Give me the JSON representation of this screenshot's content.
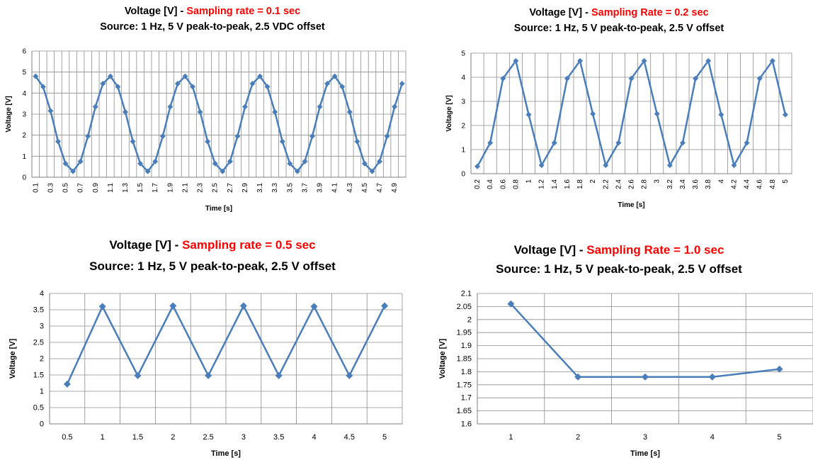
{
  "chart_data": [
    {
      "type": "line",
      "title": "Voltage [V] - ",
      "title_highlight": "Sampling rate = 0.1 sec",
      "subtitle": "Source: 1 Hz, 5 V peak-to-peak, 2.5 VDC offset",
      "xlabel": "Time [s]",
      "ylabel": "Voltage [V]",
      "ylim": [
        0,
        6
      ],
      "yticks": [
        0,
        1,
        2,
        3,
        4,
        5,
        6
      ],
      "grid": true,
      "line_color": "#4a7ebb",
      "categories": [
        "0.1",
        "0.2",
        "0.3",
        "0.4",
        "0.5",
        "0.6",
        "0.7",
        "0.8",
        "0.9",
        "1",
        "1.1",
        "1.2",
        "1.3",
        "1.4",
        "1.5",
        "1.6",
        "1.7",
        "1.8",
        "1.9",
        "2",
        "2.1",
        "2.2",
        "2.3",
        "2.4",
        "2.5",
        "2.6",
        "2.7",
        "2.8",
        "2.9",
        "3",
        "3.1",
        "3.2",
        "3.3",
        "3.4",
        "3.5",
        "3.6",
        "3.7",
        "3.8",
        "3.9",
        "4",
        "4.1",
        "4.2",
        "4.3",
        "4.4",
        "4.5",
        "4.6",
        "4.7",
        "4.8",
        "4.9",
        "5"
      ],
      "tick_labels_shown": [
        "0.1",
        "0.3",
        "0.5",
        "0.7",
        "0.9",
        "1.1",
        "1.3",
        "1.5",
        "1.7",
        "1.9",
        "2.1",
        "2.3",
        "2.5",
        "2.7",
        "2.9",
        "3.1",
        "3.3",
        "3.5",
        "3.7",
        "3.9",
        "4.1",
        "4.3",
        "4.5",
        "4.7",
        "4.9"
      ],
      "values": [
        4.8,
        4.3,
        3.15,
        1.7,
        0.65,
        0.28,
        0.75,
        1.95,
        3.35,
        4.45,
        4.8,
        4.3,
        3.1,
        1.7,
        0.65,
        0.28,
        0.75,
        1.95,
        3.35,
        4.45,
        4.8,
        4.3,
        3.1,
        1.7,
        0.65,
        0.28,
        0.75,
        1.95,
        3.35,
        4.45,
        4.8,
        4.3,
        3.1,
        1.7,
        0.65,
        0.28,
        0.75,
        1.95,
        3.35,
        4.45,
        4.8,
        4.3,
        3.1,
        1.7,
        0.65,
        0.28,
        0.75,
        1.95,
        3.35,
        4.45
      ]
    },
    {
      "type": "line",
      "title": "Voltage [V] - ",
      "title_highlight": "Sampling Rate = 0.2 sec",
      "subtitle": "Source: 1 Hz, 5 V peak-to-peak, 2.5 V offset",
      "xlabel": "Time [s]",
      "ylabel": "Voltage [V]",
      "ylim": [
        0,
        5
      ],
      "yticks": [
        0,
        1,
        2,
        3,
        4,
        5
      ],
      "grid": true,
      "line_color": "#4a7ebb",
      "categories": [
        "0.2",
        "0.4",
        "0.6",
        "0.8",
        "1",
        "1.2",
        "1.4",
        "1.6",
        "1.8",
        "2",
        "2.2",
        "2.4",
        "2.6",
        "2.8",
        "3",
        "3.2",
        "3.4",
        "3.6",
        "3.8",
        "4",
        "4.2",
        "4.4",
        "4.6",
        "4.8",
        "5"
      ],
      "tick_labels_shown": [
        "0.2",
        "0.4",
        "0.6",
        "0.8",
        "1",
        "1.2",
        "1.4",
        "1.6",
        "1.8",
        "2",
        "2.2",
        "2.4",
        "2.6",
        "2.8",
        "3",
        "3.2",
        "3.4",
        "3.6",
        "3.8",
        "4",
        "4.2",
        "4.4",
        "4.6",
        "4.8",
        "5"
      ],
      "values": [
        0.3,
        1.28,
        3.95,
        4.68,
        2.45,
        0.35,
        1.28,
        3.95,
        4.68,
        2.48,
        0.35,
        1.28,
        3.95,
        4.68,
        2.48,
        0.35,
        1.28,
        3.95,
        4.68,
        2.45,
        0.35,
        1.28,
        3.95,
        4.68,
        2.45
      ]
    },
    {
      "type": "line",
      "title": "Voltage [V] - ",
      "title_highlight": "Sampling rate = 0.5 sec",
      "subtitle": "Source: 1 Hz, 5 V peak-to-peak, 2.5 V offset",
      "xlabel": "Time [s]",
      "ylabel": "Voltage [V]",
      "ylim": [
        0,
        4
      ],
      "yticks": [
        0,
        0.5,
        1,
        1.5,
        2,
        2.5,
        3,
        3.5,
        4
      ],
      "grid": true,
      "line_color": "#4a7ebb",
      "categories": [
        "0.5",
        "1",
        "1.5",
        "2",
        "2.5",
        "3",
        "3.5",
        "4",
        "4.5",
        "5"
      ],
      "tick_labels_shown": [
        "0.5",
        "1",
        "1.5",
        "2",
        "2.5",
        "3",
        "3.5",
        "4",
        "4.5",
        "5"
      ],
      "values": [
        1.22,
        3.6,
        1.48,
        3.62,
        1.48,
        3.62,
        1.48,
        3.6,
        1.48,
        3.62
      ]
    },
    {
      "type": "line",
      "title": "Voltage [V] - ",
      "title_highlight": "Sampling Rate = 1.0 sec",
      "subtitle": "Source: 1 Hz, 5 V peak-to-peak, 2.5 V offset",
      "xlabel": "Time [s]",
      "ylabel": "Voltage [V]",
      "ylim": [
        1.6,
        2.1
      ],
      "yticks": [
        1.6,
        1.65,
        1.7,
        1.75,
        1.8,
        1.85,
        1.9,
        1.95,
        2,
        2.05,
        2.1
      ],
      "grid": true,
      "line_color": "#4a7ebb",
      "categories": [
        "1",
        "2",
        "3",
        "4",
        "5"
      ],
      "tick_labels_shown": [
        "1",
        "2",
        "3",
        "4",
        "5"
      ],
      "values": [
        2.06,
        1.78,
        1.78,
        1.78,
        1.81
      ]
    }
  ]
}
